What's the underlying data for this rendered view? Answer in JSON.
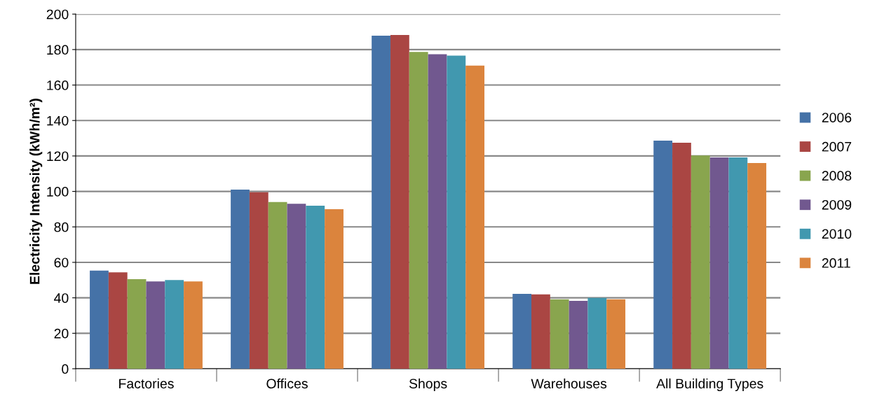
{
  "chart_data": {
    "type": "bar",
    "ylabel": "Electricity Intensity (kWh/m²)",
    "categories": [
      "Factories",
      "Offices",
      "Shops",
      "Warehouses",
      "All Building Types"
    ],
    "series": [
      {
        "name": "2006",
        "color": "#4572a7",
        "values": [
          55.4,
          101,
          187.8,
          42.2,
          128.6
        ]
      },
      {
        "name": "2007",
        "color": "#aa4643",
        "values": [
          54.4,
          99.5,
          188.2,
          41.9,
          127.5
        ]
      },
      {
        "name": "2008",
        "color": "#89a54e",
        "values": [
          50.5,
          94,
          178.7,
          39.2,
          120.3
        ]
      },
      {
        "name": "2009",
        "color": "#71588f",
        "values": [
          49.2,
          93,
          177.4,
          38.3,
          119.2
        ]
      },
      {
        "name": "2010",
        "color": "#4198af",
        "values": [
          50,
          92,
          176.6,
          40,
          119.2
        ]
      },
      {
        "name": "2011",
        "color": "#db843d",
        "values": [
          49.2,
          90,
          171,
          39.2,
          116
        ]
      }
    ],
    "ylim": [
      0,
      200
    ],
    "yticks": [
      0,
      20,
      40,
      60,
      80,
      100,
      120,
      140,
      160,
      180,
      200
    ],
    "grid": "y",
    "legend": "right"
  }
}
